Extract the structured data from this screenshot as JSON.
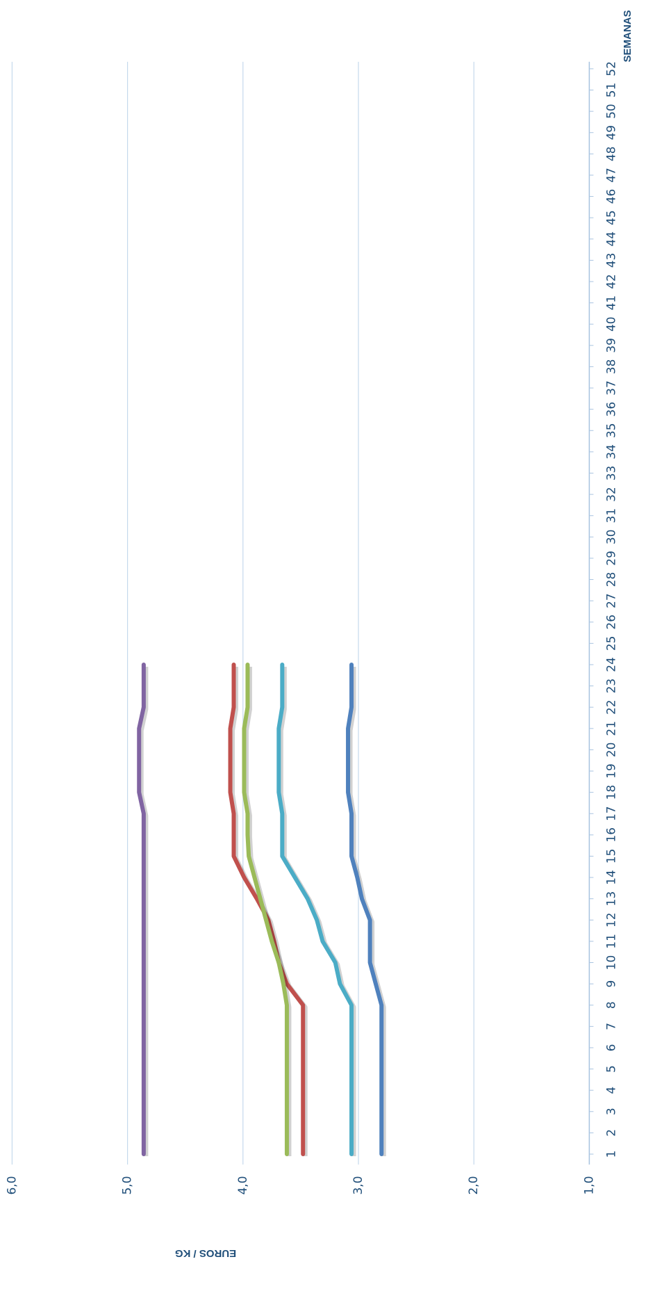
{
  "chart_data": {
    "type": "line",
    "y_label": "EUROS / KG",
    "x_label": "SEMANAS",
    "x": [
      1,
      2,
      3,
      4,
      5,
      6,
      7,
      8,
      9,
      10,
      11,
      12,
      13,
      14,
      15,
      16,
      17,
      18,
      19,
      20,
      21,
      22,
      23,
      24,
      25,
      26,
      27,
      28,
      29,
      30,
      31,
      32,
      33,
      34,
      35,
      36,
      37,
      38,
      39,
      40,
      41,
      42,
      43,
      44,
      45,
      46,
      47,
      48,
      49,
      50,
      51,
      52
    ],
    "xlim": [
      1,
      52
    ],
    "ylim": [
      1,
      6
    ],
    "yticks": [
      {
        "value": 1,
        "label": "1,0"
      },
      {
        "value": 2,
        "label": "2,0"
      },
      {
        "value": 3,
        "label": "3,0"
      },
      {
        "value": 4,
        "label": "4,0"
      },
      {
        "value": 5,
        "label": "5,0"
      },
      {
        "value": 6,
        "label": "6,0"
      }
    ],
    "grid": true,
    "series": [
      {
        "color": "#8064a2",
        "values": [
          4.86,
          4.86,
          4.86,
          4.86,
          4.86,
          4.86,
          4.86,
          4.86,
          4.86,
          4.86,
          4.86,
          4.86,
          4.86,
          4.86,
          4.86,
          4.86,
          4.86,
          4.9,
          4.9,
          4.9,
          4.9,
          4.86,
          4.86,
          4.86,
          null,
          null,
          null,
          null,
          null,
          null,
          null,
          null,
          null,
          null,
          null,
          null,
          null,
          null,
          null,
          null,
          null,
          null,
          null,
          null,
          null,
          null,
          null,
          null,
          null,
          null,
          null,
          null
        ]
      },
      {
        "color": "#c0504d",
        "values": [
          3.48,
          3.48,
          3.48,
          3.48,
          3.48,
          3.48,
          3.48,
          3.48,
          3.62,
          3.69,
          3.73,
          3.78,
          3.88,
          3.99,
          4.08,
          4.08,
          4.08,
          4.11,
          4.11,
          4.11,
          4.11,
          4.08,
          4.08,
          4.08,
          null,
          null,
          null,
          null,
          null,
          null,
          null,
          null,
          null,
          null,
          null,
          null,
          null,
          null,
          null,
          null,
          null,
          null,
          null,
          null,
          null,
          null,
          null,
          null,
          null,
          null,
          null,
          null
        ]
      },
      {
        "color": "#9bbb59",
        "values": [
          3.62,
          3.62,
          3.62,
          3.62,
          3.62,
          3.62,
          3.62,
          3.62,
          3.65,
          3.69,
          3.75,
          3.8,
          3.85,
          3.9,
          3.95,
          3.96,
          3.96,
          3.99,
          3.99,
          3.99,
          3.99,
          3.96,
          3.96,
          3.96,
          null,
          null,
          null,
          null,
          null,
          null,
          null,
          null,
          null,
          null,
          null,
          null,
          null,
          null,
          null,
          null,
          null,
          null,
          null,
          null,
          null,
          null,
          null,
          null,
          null,
          null,
          null,
          null
        ]
      },
      {
        "color": "#4bacc6",
        "values": [
          3.06,
          3.06,
          3.06,
          3.06,
          3.06,
          3.06,
          3.06,
          3.06,
          3.16,
          3.2,
          3.31,
          3.36,
          3.44,
          3.55,
          3.66,
          3.66,
          3.66,
          3.69,
          3.69,
          3.69,
          3.69,
          3.66,
          3.66,
          3.66,
          null,
          null,
          null,
          null,
          null,
          null,
          null,
          null,
          null,
          null,
          null,
          null,
          null,
          null,
          null,
          null,
          null,
          null,
          null,
          null,
          null,
          null,
          null,
          null,
          null,
          null,
          null,
          null
        ]
      },
      {
        "color": "#4f81bd",
        "values": [
          2.8,
          2.8,
          2.8,
          2.8,
          2.8,
          2.8,
          2.8,
          2.8,
          2.85,
          2.9,
          2.9,
          2.9,
          2.97,
          3.01,
          3.06,
          3.06,
          3.06,
          3.09,
          3.09,
          3.09,
          3.09,
          3.06,
          3.06,
          3.06,
          null,
          null,
          null,
          null,
          null,
          null,
          null,
          null,
          null,
          null,
          null,
          null,
          null,
          null,
          null,
          null,
          null,
          null,
          null,
          null,
          null,
          null,
          null,
          null,
          null,
          null,
          null,
          null
        ]
      }
    ]
  }
}
